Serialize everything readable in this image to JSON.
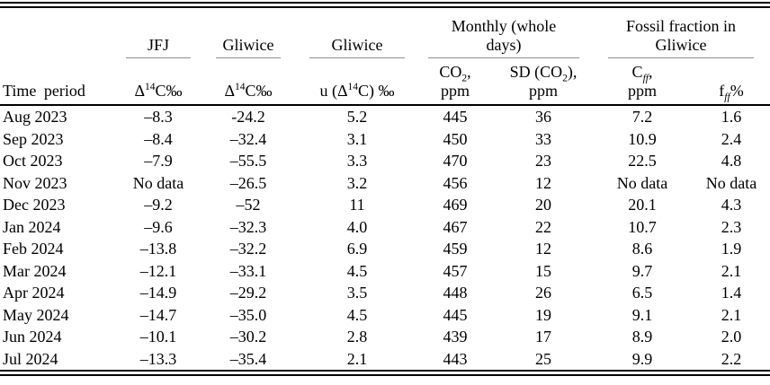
{
  "table": {
    "header": {
      "time_period": "Time period",
      "groups": {
        "jfj": "JFJ",
        "gliwice_d14c": "Gliwice",
        "gliwice_u": "Gliwice",
        "monthly": "Monthly (whole days)",
        "fossil": "Fossil fraction in Gliwice"
      },
      "cols": {
        "jfj_d14c": {
          "pre": "Δ",
          "sup": "14",
          "post": "C‰"
        },
        "gliwice_d14c": {
          "pre": "Δ",
          "sup": "14",
          "post": "C‰"
        },
        "u_d14c": {
          "pre": "u (Δ",
          "sup": "14",
          "post": "C) ‰"
        },
        "co2": {
          "pre": "CO",
          "sub": "2",
          "post": ",",
          "unit": "ppm"
        },
        "sd_co2": {
          "pre": "SD (CO",
          "sub": "2",
          "post": "),",
          "unit": "ppm"
        },
        "cff": {
          "pre": "C",
          "sub": "ff",
          "post": ",",
          "unit": "ppm"
        },
        "fff": {
          "pre": "f",
          "sub": "ff",
          "post": "%"
        }
      }
    },
    "rows": [
      {
        "period": "Aug 2023",
        "jfj": "–8.3",
        "gliwice": "-24.2",
        "u": "5.2",
        "co2": "445",
        "sd": "36",
        "cff": "7.2",
        "fff": "1.6"
      },
      {
        "period": "Sep 2023",
        "jfj": "–8.4",
        "gliwice": "–32.4",
        "u": "3.1",
        "co2": "450",
        "sd": "33",
        "cff": "10.9",
        "fff": "2.4"
      },
      {
        "period": "Oct 2023",
        "jfj": "–7.9",
        "gliwice": "–55.5",
        "u": "3.3",
        "co2": "470",
        "sd": "23",
        "cff": "22.5",
        "fff": "4.8"
      },
      {
        "period": "Nov 2023",
        "jfj": "No data",
        "gliwice": "–26.5",
        "u": "3.2",
        "co2": "456",
        "sd": "12",
        "cff": "No data",
        "fff": "No data"
      },
      {
        "period": "Dec 2023",
        "jfj": "–9.2",
        "gliwice": "–52",
        "u": "11",
        "co2": "469",
        "sd": "20",
        "cff": "20.1",
        "fff": "4.3"
      },
      {
        "period": "Jan 2024",
        "jfj": "–9.6",
        "gliwice": "–32.3",
        "u": "4.0",
        "co2": "467",
        "sd": "22",
        "cff": "10.7",
        "fff": "2.3"
      },
      {
        "period": "Feb 2024",
        "jfj": "–13.8",
        "gliwice": "–32.2",
        "u": "6.9",
        "co2": "459",
        "sd": "12",
        "cff": "8.6",
        "fff": "1.9"
      },
      {
        "period": "Mar 2024",
        "jfj": "–12.1",
        "gliwice": "–33.1",
        "u": "4.5",
        "co2": "457",
        "sd": "15",
        "cff": "9.7",
        "fff": "2.1"
      },
      {
        "period": "Apr 2024",
        "jfj": "–14.9",
        "gliwice": "–29.2",
        "u": "3.5",
        "co2": "448",
        "sd": "26",
        "cff": "6.5",
        "fff": "1.4"
      },
      {
        "period": "May 2024",
        "jfj": "–14.7",
        "gliwice": "–35.0",
        "u": "4.5",
        "co2": "445",
        "sd": "19",
        "cff": "9.1",
        "fff": "2.1"
      },
      {
        "period": "Jun 2024",
        "jfj": "–10.1",
        "gliwice": "–30.2",
        "u": "2.8",
        "co2": "439",
        "sd": "17",
        "cff": "8.9",
        "fff": "2.0"
      },
      {
        "period": "Jul 2024",
        "jfj": "–13.3",
        "gliwice": "–35.4",
        "u": "2.1",
        "co2": "443",
        "sd": "25",
        "cff": "9.9",
        "fff": "2.2"
      }
    ]
  }
}
